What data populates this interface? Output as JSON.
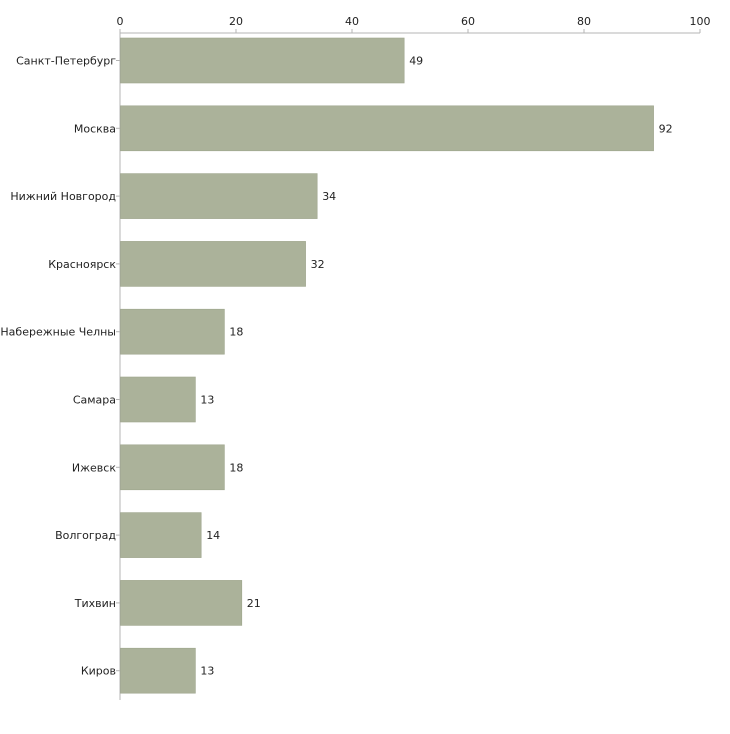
{
  "chart_data": {
    "type": "bar",
    "orientation": "horizontal",
    "title": "",
    "xlabel": "",
    "ylabel": "",
    "xlim": [
      0,
      100
    ],
    "ticks": [
      0,
      20,
      40,
      60,
      80,
      100
    ],
    "tick_labels": [
      "0",
      "20",
      "40",
      "60",
      "80",
      "100"
    ],
    "categories": [
      "Санкт-Петербург",
      "Москва",
      "Нижний Новгород",
      "Красноярск",
      "Набережные Челны",
      "Самара",
      "Ижевск",
      "Волгоград",
      "Тихвин",
      "Киров"
    ],
    "values": [
      49,
      92,
      34,
      32,
      18,
      13,
      18,
      14,
      21,
      13
    ],
    "value_labels": [
      "49",
      "92",
      "34",
      "32",
      "18",
      "13",
      "18",
      "14",
      "21",
      "13"
    ],
    "axis_position": "top",
    "grid": false,
    "legend": "none",
    "colors": {
      "bar": "#abb29a",
      "bar_edge": "#9ea58c",
      "axis": "#b4b4b4",
      "text": "#222222"
    }
  }
}
